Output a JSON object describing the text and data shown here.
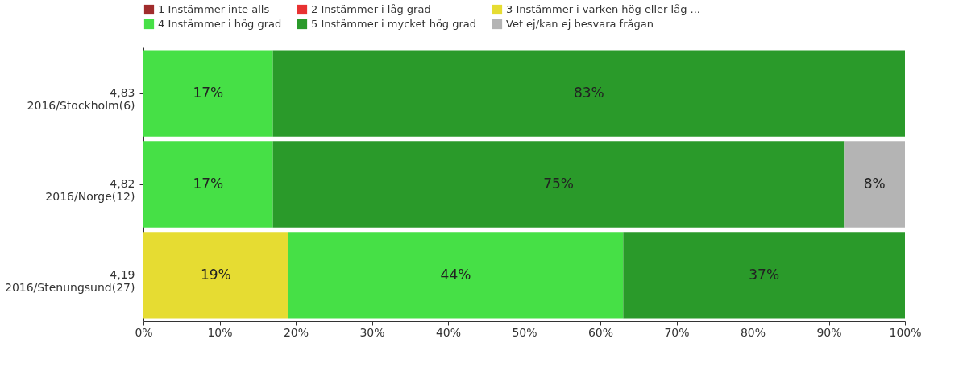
{
  "chart_data": {
    "type": "bar",
    "orientation": "horizontal",
    "stacked": true,
    "legend": "top",
    "grid": false,
    "categories": [
      "4,83\n2016/Stockholm(6)",
      "4,82\n2016/Norge(12)",
      "4,19\n2016/Stenungsund(27)"
    ],
    "xlim": [
      0,
      100
    ],
    "xticks": [
      {
        "value": 0,
        "label": "0%"
      },
      {
        "value": 10,
        "label": "10%"
      },
      {
        "value": 20,
        "label": "20%"
      },
      {
        "value": 30,
        "label": "30%"
      },
      {
        "value": 40,
        "label": "40%"
      },
      {
        "value": 50,
        "label": "50%"
      },
      {
        "value": 60,
        "label": "60%"
      },
      {
        "value": 70,
        "label": "70%"
      },
      {
        "value": 80,
        "label": "80%"
      },
      {
        "value": 90,
        "label": "90%"
      },
      {
        "value": 100,
        "label": "100%"
      }
    ],
    "series": [
      {
        "name": "1 Instämmer inte alls",
        "color": "#a02c2c",
        "values": [
          0,
          0,
          0
        ],
        "value_labels": [
          null,
          null,
          null
        ]
      },
      {
        "name": "2 Instämmer i låg grad",
        "color": "#e83232",
        "values": [
          0,
          0,
          0
        ],
        "value_labels": [
          null,
          null,
          null
        ]
      },
      {
        "name": "3 Instämmer i varken hög eller låg ...",
        "color": "#e6dc32",
        "values": [
          0,
          0,
          19
        ],
        "value_labels": [
          null,
          null,
          "19%"
        ]
      },
      {
        "name": "4 Instämmer i hög grad",
        "color": "#46e046",
        "values": [
          17,
          17,
          44
        ],
        "value_labels": [
          "17%",
          "17%",
          "44%"
        ]
      },
      {
        "name": "5 Instämmer i mycket hög grad",
        "color": "#2a9a2a",
        "values": [
          83,
          75,
          37
        ],
        "value_labels": [
          "83%",
          "75%",
          "37%"
        ]
      },
      {
        "name": "Vet ej/kan ej besvara frågan",
        "color": "#b4b4b4",
        "values": [
          0,
          8,
          0
        ],
        "value_labels": [
          null,
          "8%",
          null
        ]
      }
    ]
  }
}
